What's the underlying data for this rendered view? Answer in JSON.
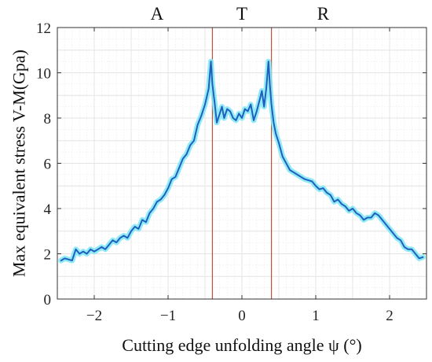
{
  "chart_data": {
    "type": "line",
    "title": "",
    "xlabel": "Cutting edge unfolding angle ψ (°)",
    "ylabel": "Max equivalent stress V-M(Gpa)",
    "xlim": [
      -2.5,
      2.5
    ],
    "ylim": [
      0,
      12
    ],
    "xticks": [
      -2,
      -1,
      0,
      1,
      2
    ],
    "xtick_labels": [
      "−2",
      "−1",
      "0",
      "1",
      "2"
    ],
    "yticks": [
      0,
      2,
      4,
      6,
      8,
      10,
      12
    ],
    "ytick_labels": [
      "0",
      "2",
      "4",
      "6",
      "8",
      "10",
      "12"
    ],
    "grid": true,
    "region_labels": [
      {
        "text": "A",
        "x": -1.15
      },
      {
        "text": "T",
        "x": 0.0
      },
      {
        "text": "R",
        "x": 1.1
      }
    ],
    "boundaries": [
      -0.4,
      0.4
    ],
    "colors": {
      "line": "#1f5fbf",
      "glow": "#7ee8f5",
      "boundary": "#c0503a",
      "grid": "#e4e4e4",
      "axis": "#333333"
    },
    "series": [
      {
        "x": [
          -2.45,
          -2.4,
          -2.35,
          -2.3,
          -2.25,
          -2.2,
          -2.15,
          -2.1,
          -2.05,
          -2.0,
          -1.95,
          -1.9,
          -1.85,
          -1.8,
          -1.75,
          -1.7,
          -1.65,
          -1.6,
          -1.55,
          -1.5,
          -1.45,
          -1.4,
          -1.35,
          -1.3,
          -1.25,
          -1.2,
          -1.15,
          -1.1,
          -1.05,
          -1.0,
          -0.95,
          -0.9,
          -0.85,
          -0.8,
          -0.75,
          -0.7,
          -0.65,
          -0.6,
          -0.55,
          -0.5,
          -0.45,
          -0.42,
          -0.4,
          -0.37,
          -0.34,
          -0.3,
          -0.27,
          -0.24,
          -0.2,
          -0.16,
          -0.12,
          -0.08,
          -0.04,
          0.0,
          0.04,
          0.08,
          0.12,
          0.16,
          0.2,
          0.24,
          0.27,
          0.3,
          0.33,
          0.36,
          0.38,
          0.4,
          0.43,
          0.46,
          0.5,
          0.55,
          0.6,
          0.65,
          0.7,
          0.75,
          0.8,
          0.85,
          0.9,
          0.95,
          1.0,
          1.05,
          1.1,
          1.15,
          1.2,
          1.25,
          1.3,
          1.35,
          1.4,
          1.45,
          1.5,
          1.55,
          1.6,
          1.65,
          1.7,
          1.75,
          1.8,
          1.85,
          1.9,
          1.95,
          2.0,
          2.05,
          2.1,
          2.15,
          2.2,
          2.25,
          2.3,
          2.35,
          2.4,
          2.45
        ],
        "y": [
          1.7,
          1.8,
          1.75,
          1.7,
          2.2,
          2.0,
          2.1,
          2.0,
          2.2,
          2.1,
          2.2,
          2.3,
          2.2,
          2.4,
          2.6,
          2.5,
          2.7,
          2.8,
          2.7,
          3.0,
          3.2,
          3.1,
          3.5,
          3.4,
          3.8,
          4.0,
          4.3,
          4.4,
          4.6,
          4.9,
          5.3,
          5.4,
          5.8,
          6.2,
          6.4,
          6.8,
          7.0,
          7.7,
          8.1,
          8.6,
          9.3,
          10.5,
          9.5,
          8.7,
          7.8,
          8.2,
          8.5,
          8.0,
          8.4,
          8.3,
          8.0,
          7.9,
          8.2,
          8.0,
          8.4,
          8.3,
          8.6,
          7.9,
          8.3,
          8.8,
          9.2,
          8.5,
          9.3,
          10.5,
          9.4,
          8.6,
          7.8,
          7.3,
          6.9,
          6.3,
          6.0,
          5.7,
          5.6,
          5.5,
          5.4,
          5.3,
          5.25,
          5.2,
          5.0,
          4.85,
          4.9,
          4.7,
          4.6,
          4.3,
          4.4,
          4.2,
          4.1,
          3.9,
          4.0,
          3.8,
          3.7,
          3.5,
          3.6,
          3.6,
          3.8,
          3.7,
          3.5,
          3.3,
          3.1,
          2.9,
          2.7,
          2.6,
          2.3,
          2.2,
          2.2,
          2.0,
          1.8,
          1.85
        ]
      }
    ]
  }
}
